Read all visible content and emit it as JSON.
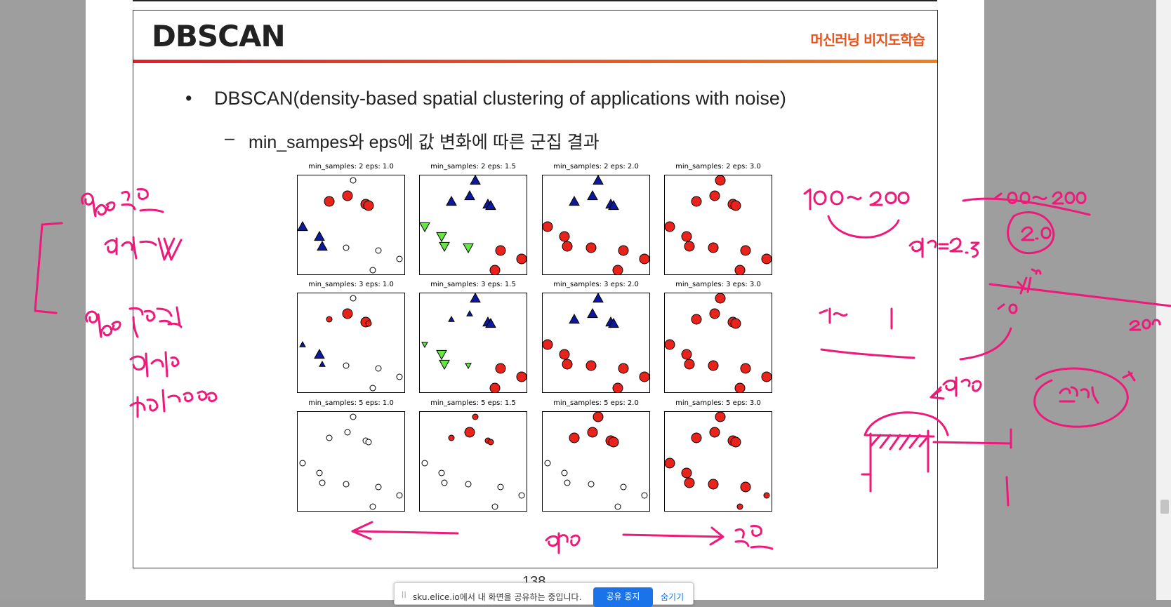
{
  "slide": {
    "title": "DBSCAN",
    "subtitle": "머신러닝 비지도학습",
    "bullet1": "DBSCAN(density-based spatial clustering of applications with noise)",
    "bullet1_marker": "•",
    "bullet2": "min_sampes와 eps에 값 변화에 따른 군집 결과",
    "bullet2_marker": "–",
    "page_number": "138"
  },
  "figure": {
    "panels": [
      {
        "title": "min_samples: 2 eps: 1.0"
      },
      {
        "title": "min_samples: 2 eps: 1.5"
      },
      {
        "title": "min_samples: 2 eps: 2.0"
      },
      {
        "title": "min_samples: 2 eps: 3.0"
      },
      {
        "title": "min_samples: 3 eps: 1.0"
      },
      {
        "title": "min_samples: 3 eps: 1.5"
      },
      {
        "title": "min_samples: 3 eps: 2.0"
      },
      {
        "title": "min_samples: 3 eps: 3.0"
      },
      {
        "title": "min_samples: 5 eps: 1.0"
      },
      {
        "title": "min_samples: 5 eps: 1.5"
      },
      {
        "title": "min_samples: 5 eps: 2.0"
      },
      {
        "title": "min_samples: 5 eps: 3.0"
      }
    ],
    "colors": {
      "red": "#e8231b",
      "blue": "#0b1a9c",
      "green": "#66e545",
      "noise": "#ffffff"
    }
  },
  "share_bar": {
    "grip": "||",
    "text": "sku.elice.io에서 내 화면을 공유하는 중입니다.",
    "stop_label": "공유 중지",
    "hide_label": "숨기기"
  },
  "annotations": {
    "ink_color": "#ee1a7a"
  }
}
